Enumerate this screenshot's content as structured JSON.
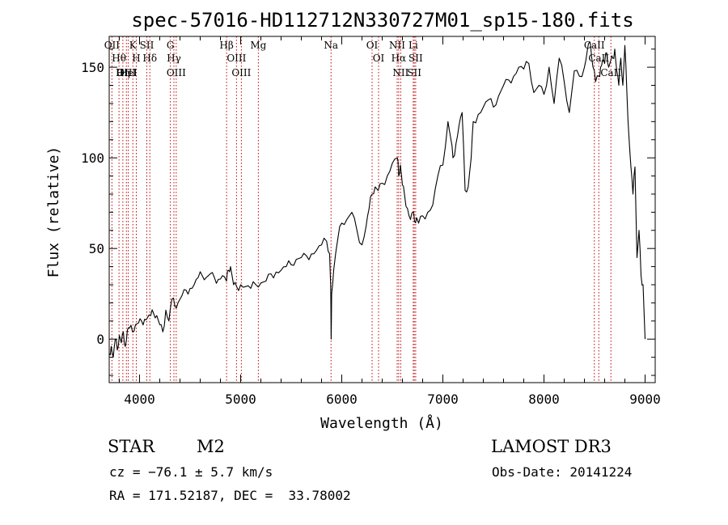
{
  "chart_data": {
    "type": "line",
    "title": "spec-57016-HD112712N330727M01_sp15-180.fits",
    "xlabel": "Wavelength (Å)",
    "ylabel": "Flux (relative)",
    "xlim": [
      3700,
      9100
    ],
    "ylim": [
      -24,
      167
    ],
    "xticks": [
      4000,
      5000,
      6000,
      7000,
      8000,
      9000
    ],
    "xtick_labels": [
      "4000",
      "5000",
      "6000",
      "7000",
      "8000",
      "9000"
    ],
    "yticks": [
      0,
      50,
      100,
      150
    ],
    "ytick_labels": [
      "0",
      "50",
      "100",
      "150"
    ],
    "series": [
      {
        "name": "spectrum",
        "x": [
          3700,
          3720,
          3740,
          3760,
          3780,
          3800,
          3820,
          3840,
          3860,
          3880,
          3900,
          3930,
          3960,
          3990,
          4020,
          4050,
          4080,
          4110,
          4140,
          4170,
          4200,
          4230,
          4260,
          4290,
          4320,
          4350,
          4380,
          4420,
          4460,
          4500,
          4540,
          4580,
          4620,
          4660,
          4700,
          4740,
          4780,
          4820,
          4860,
          4880,
          4900,
          4930,
          4960,
          5000,
          5050,
          5100,
          5150,
          5200,
          5250,
          5300,
          5350,
          5400,
          5450,
          5500,
          5550,
          5600,
          5650,
          5700,
          5750,
          5800,
          5850,
          5880,
          5890,
          5895,
          5900,
          5920,
          5960,
          6000,
          6050,
          6100,
          6150,
          6200,
          6240,
          6270,
          6300,
          6330,
          6360,
          6400,
          6450,
          6500,
          6550,
          6563,
          6580,
          6600,
          6620,
          6650,
          6680,
          6700,
          6720,
          6740,
          6760,
          6800,
          6850,
          6900,
          6950,
          7000,
          7050,
          7080,
          7100,
          7130,
          7160,
          7190,
          7220,
          7250,
          7280,
          7300,
          7350,
          7400,
          7450,
          7500,
          7550,
          7600,
          7650,
          7700,
          7750,
          7800,
          7850,
          7900,
          7950,
          8000,
          8050,
          8100,
          8150,
          8200,
          8250,
          8300,
          8350,
          8400,
          8430,
          8450,
          8470,
          8498,
          8510,
          8542,
          8560,
          8580,
          8600,
          8620,
          8640,
          8662,
          8680,
          8700,
          8720,
          8740,
          8760,
          8780,
          8800,
          8820,
          8840,
          8860,
          8880,
          8900,
          8920,
          8940,
          8960,
          8980,
          9000
        ],
        "y": [
          -8,
          -4,
          -10,
          0,
          -6,
          2,
          -2,
          4,
          -4,
          5,
          6,
          4,
          8,
          9,
          10,
          11,
          12,
          13,
          14,
          13,
          8,
          4,
          16,
          10,
          22,
          18,
          20,
          24,
          27,
          28,
          30,
          34,
          35,
          34,
          36,
          34,
          33,
          35,
          32,
          38,
          40,
          30,
          29,
          30,
          29,
          28,
          30,
          31,
          32,
          36,
          37,
          38,
          40,
          41,
          44,
          45,
          46,
          47,
          49,
          52,
          54,
          47,
          30,
          0,
          25,
          38,
          55,
          64,
          66,
          70,
          60,
          52,
          62,
          72,
          80,
          84,
          82,
          86,
          90,
          97,
          100,
          90,
          96,
          85,
          80,
          72,
          66,
          70,
          65,
          67,
          64,
          68,
          70,
          74,
          90,
          96,
          120,
          110,
          100,
          108,
          118,
          125,
          82,
          84,
          100,
          120,
          124,
          128,
          132,
          128,
          134,
          140,
          143,
          145,
          150,
          149,
          152,
          136,
          140,
          135,
          150,
          130,
          155,
          142,
          125,
          148,
          145,
          150,
          160,
          164,
          156,
          148,
          142,
          145,
          150,
          154,
          152,
          158,
          150,
          154,
          155,
          160,
          148,
          140,
          155,
          140,
          162,
          136,
          112,
          95,
          80,
          95,
          45,
          60,
          35,
          30,
          0
        ]
      }
    ],
    "line_markers": [
      {
        "label": "Hθ",
        "wavelength": 3797
      },
      {
        "label": "OII",
        "wavelength": 3727
      },
      {
        "label": "OIII",
        "wavelength": 3870
      },
      {
        "label": "K",
        "wavelength": 3934
      },
      {
        "label": "HeI",
        "wavelength": 3889
      },
      {
        "label": "Hη",
        "wavelength": 3835
      },
      {
        "label": "H",
        "wavelength": 3968
      },
      {
        "label": "Hδ",
        "wavelength": 4102
      },
      {
        "label": "SII",
        "wavelength": 4072
      },
      {
        "label": "OIII",
        "wavelength": 4363
      },
      {
        "label": "Hγ",
        "wavelength": 4340
      },
      {
        "label": "G",
        "wavelength": 4305
      },
      {
        "label": "OIII",
        "wavelength": 5007
      },
      {
        "label": "OIII",
        "wavelength": 4959
      },
      {
        "label": "Hβ",
        "wavelength": 4861
      },
      {
        "label": "Mg",
        "wavelength": 5175
      },
      {
        "label": "Na",
        "wavelength": 5894
      },
      {
        "label": "OI",
        "wavelength": 6300
      },
      {
        "label": "OI",
        "wavelength": 6364
      },
      {
        "label": "Hα",
        "wavelength": 6563
      },
      {
        "label": "NII",
        "wavelength": 6548
      },
      {
        "label": "NII",
        "wavelength": 6583
      },
      {
        "label": "SII",
        "wavelength": 6717
      },
      {
        "label": "Li",
        "wavelength": 6707
      },
      {
        "label": "SII",
        "wavelength": 6731
      },
      {
        "label": "CaII",
        "wavelength": 8498
      },
      {
        "label": "CaII",
        "wavelength": 8542
      },
      {
        "label": "CaII",
        "wavelength": 8662
      }
    ]
  },
  "info": {
    "object_class": "STAR",
    "subclass": "M2",
    "survey": "LAMOST DR3",
    "redshift": "cz = −76.1 ± 5.7 km/s",
    "obs_date": "Obs-Date: 20141224",
    "coords": "RA = 171.52187, DEC =  33.78002"
  },
  "colors": {
    "spectrum": "#000000",
    "marker_line": "#c00000",
    "axis": "#000000"
  }
}
